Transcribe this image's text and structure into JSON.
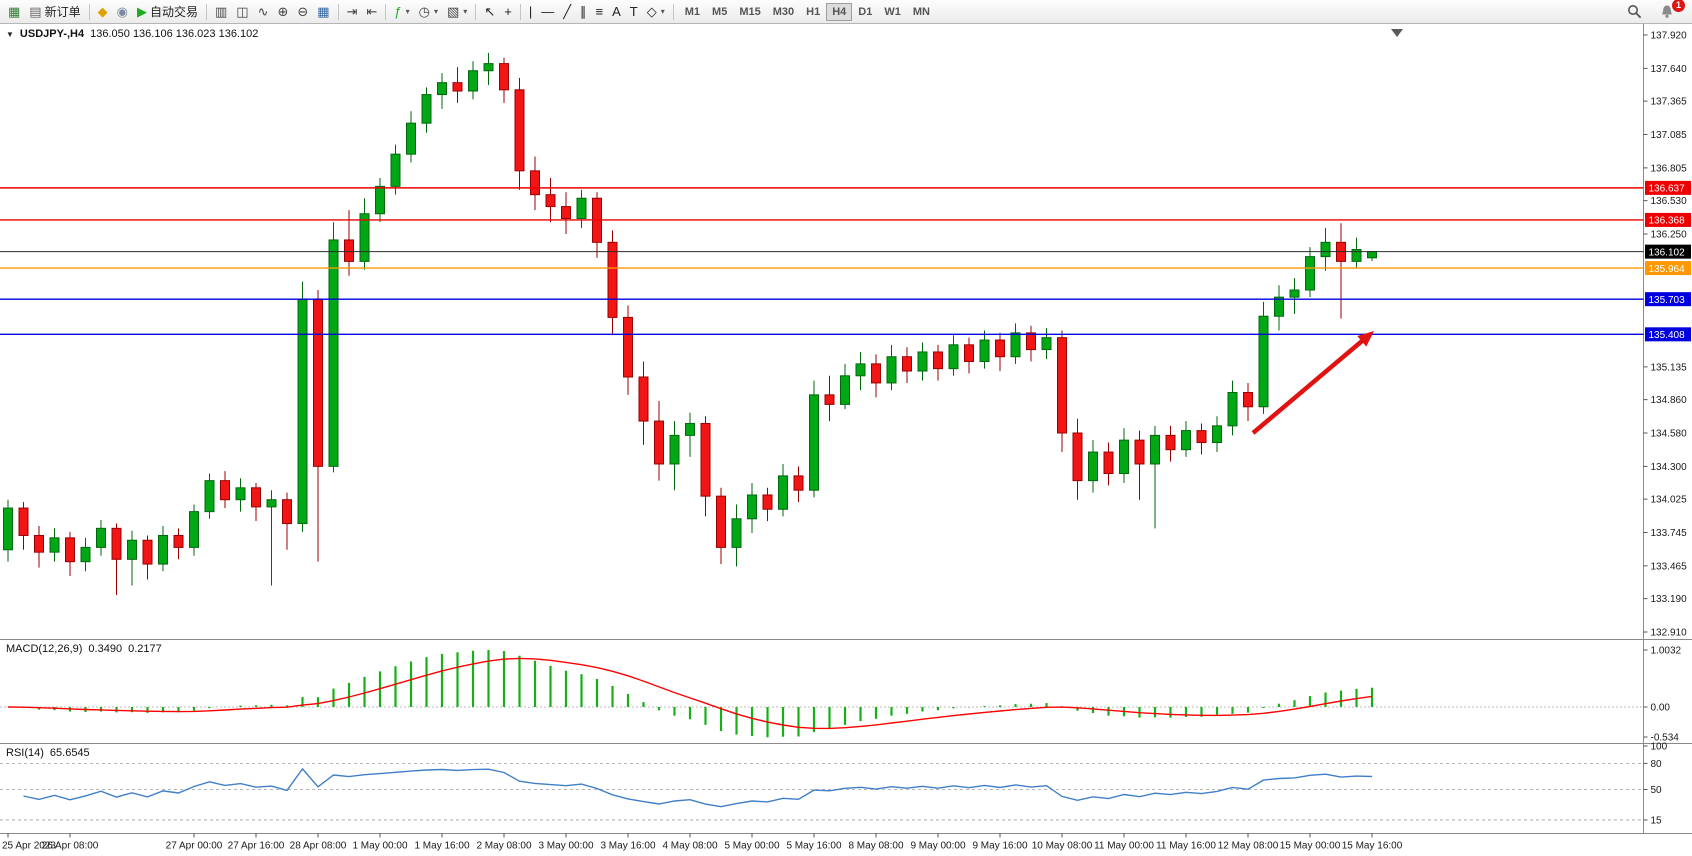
{
  "toolbar": {
    "buttons": [
      {
        "name": "new-chart",
        "glyph": "▦",
        "color": "#2e7d32"
      },
      {
        "name": "new-order",
        "glyph": "▤",
        "color": "#666",
        "label": "新订单"
      },
      {
        "name": "sep"
      },
      {
        "name": "metaeditor",
        "glyph": "◆",
        "color": "#dda400"
      },
      {
        "name": "community",
        "glyph": "◉",
        "color": "#7a8aa0"
      },
      {
        "name": "auto-trading",
        "glyph": "▶",
        "color": "#1faa1f",
        "label": "自动交易"
      },
      {
        "name": "sep"
      },
      {
        "name": "chart-bars",
        "glyph": "▥",
        "color": "#444"
      },
      {
        "name": "chart-candles",
        "glyph": "◫",
        "color": "#444"
      },
      {
        "name": "chart-line",
        "glyph": "∿",
        "color": "#444"
      },
      {
        "name": "zoom-in",
        "glyph": "⊕",
        "color": "#444"
      },
      {
        "name": "zoom-out",
        "glyph": "⊖",
        "color": "#444"
      },
      {
        "name": "tile-windows",
        "glyph": "▦",
        "color": "#3565a0"
      },
      {
        "name": "sep"
      },
      {
        "name": "auto-scroll",
        "glyph": "⇥",
        "color": "#444"
      },
      {
        "name": "chart-shift",
        "glyph": "⇤",
        "color": "#444"
      },
      {
        "name": "sep"
      },
      {
        "name": "indicators",
        "glyph": "ƒ",
        "color": "#1faa1f",
        "dropdown": true
      },
      {
        "name": "periods",
        "glyph": "◷",
        "color": "#444",
        "dropdown": true
      },
      {
        "name": "templates",
        "glyph": "▧",
        "color": "#444",
        "dropdown": true
      },
      {
        "name": "sep"
      },
      {
        "name": "cursor",
        "glyph": "↖",
        "color": "#222"
      },
      {
        "name": "crosshair",
        "glyph": "+",
        "color": "#222"
      },
      {
        "name": "sep"
      },
      {
        "name": "vertical-line",
        "glyph": "|",
        "color": "#222"
      },
      {
        "name": "horizontal-line",
        "glyph": "—",
        "color": "#222"
      },
      {
        "name": "trendline",
        "glyph": "╱",
        "color": "#222"
      },
      {
        "name": "equidistant-channel",
        "glyph": "∥",
        "color": "#222"
      },
      {
        "name": "fibonacci",
        "glyph": "≡",
        "color": "#222"
      },
      {
        "name": "text",
        "glyph": "A",
        "color": "#222"
      },
      {
        "name": "text-label",
        "glyph": "T",
        "color": "#222"
      },
      {
        "name": "shapes",
        "glyph": "◇",
        "color": "#222",
        "dropdown": true
      },
      {
        "name": "sep"
      }
    ],
    "timeframes": [
      "M1",
      "M5",
      "M15",
      "M30",
      "H1",
      "H4",
      "D1",
      "W1",
      "MN"
    ],
    "active_timeframe": "H4",
    "notification_badge": "1"
  },
  "chart_data": {
    "type": "candlestick",
    "symbol": "USDJPY-",
    "period": "H4",
    "title_text": "USDJPY-,H4",
    "ohlc_text": "136.050 136.106 136.023 136.102",
    "current": {
      "open": "136.050",
      "high": "136.106",
      "low": "136.023",
      "close": "136.102"
    },
    "y_ticks": [
      "137.920",
      "137.640",
      "137.365",
      "137.085",
      "136.805",
      "136.530",
      "136.250",
      "135.135",
      "134.860",
      "134.580",
      "134.300",
      "134.025",
      "133.745",
      "133.465",
      "133.190",
      "132.910"
    ],
    "x_labels": [
      [
        0,
        "25 Apr 2023"
      ],
      [
        4,
        "26 Apr 08:00"
      ],
      [
        12,
        "27 Apr 00:00"
      ],
      [
        16,
        "27 Apr 16:00"
      ],
      [
        20,
        "28 Apr 08:00"
      ],
      [
        24,
        "1 May 00:00"
      ],
      [
        28,
        "1 May 16:00"
      ],
      [
        32,
        "2 May 08:00"
      ],
      [
        36,
        "3 May 00:00"
      ],
      [
        40,
        "3 May 16:00"
      ],
      [
        44,
        "4 May 08:00"
      ],
      [
        48,
        "5 May 00:00"
      ],
      [
        52,
        "5 May 16:00"
      ],
      [
        56,
        "8 May 08:00"
      ],
      [
        60,
        "9 May 00:00"
      ],
      [
        64,
        "9 May 16:00"
      ],
      [
        68,
        "10 May 08:00"
      ],
      [
        72,
        "11 May 00:00"
      ],
      [
        76,
        "11 May 16:00"
      ],
      [
        80,
        "12 May 08:00"
      ],
      [
        84,
        "15 May 00:00"
      ],
      [
        88,
        "15 May 16:00"
      ]
    ],
    "candles": [
      [
        133.6,
        134.02,
        133.5,
        133.95
      ],
      [
        133.95,
        134.0,
        133.6,
        133.72
      ],
      [
        133.72,
        133.8,
        133.45,
        133.58
      ],
      [
        133.58,
        133.78,
        133.5,
        133.7
      ],
      [
        133.7,
        133.75,
        133.38,
        133.5
      ],
      [
        133.5,
        133.7,
        133.42,
        133.62
      ],
      [
        133.62,
        133.85,
        133.55,
        133.78
      ],
      [
        133.78,
        133.82,
        133.22,
        133.52
      ],
      [
        133.52,
        133.76,
        133.3,
        133.68
      ],
      [
        133.68,
        133.72,
        133.35,
        133.48
      ],
      [
        133.48,
        133.8,
        133.42,
        133.72
      ],
      [
        133.72,
        133.78,
        133.52,
        133.62
      ],
      [
        133.62,
        133.98,
        133.55,
        133.92
      ],
      [
        133.92,
        134.24,
        133.86,
        134.18
      ],
      [
        134.18,
        134.26,
        133.95,
        134.02
      ],
      [
        134.02,
        134.2,
        133.92,
        134.12
      ],
      [
        134.12,
        134.16,
        133.84,
        133.96
      ],
      [
        133.96,
        134.1,
        133.3,
        134.02
      ],
      [
        134.02,
        134.08,
        133.6,
        133.82
      ],
      [
        133.82,
        135.85,
        133.75,
        135.7
      ],
      [
        135.7,
        135.78,
        133.5,
        134.3
      ],
      [
        134.3,
        136.35,
        134.25,
        136.2
      ],
      [
        136.2,
        136.45,
        135.9,
        136.02
      ],
      [
        136.02,
        136.55,
        135.95,
        136.42
      ],
      [
        136.42,
        136.72,
        136.35,
        136.65
      ],
      [
        136.65,
        137.0,
        136.58,
        136.92
      ],
      [
        136.92,
        137.28,
        136.85,
        137.18
      ],
      [
        137.18,
        137.48,
        137.1,
        137.42
      ],
      [
        137.42,
        137.6,
        137.3,
        137.52
      ],
      [
        137.52,
        137.65,
        137.35,
        137.45
      ],
      [
        137.45,
        137.7,
        137.38,
        137.62
      ],
      [
        137.62,
        137.77,
        137.5,
        137.68
      ],
      [
        137.68,
        137.73,
        137.35,
        137.46
      ],
      [
        137.46,
        137.56,
        136.62,
        136.78
      ],
      [
        136.78,
        136.9,
        136.45,
        136.58
      ],
      [
        136.58,
        136.72,
        136.35,
        136.48
      ],
      [
        136.48,
        136.6,
        136.25,
        136.38
      ],
      [
        136.38,
        136.62,
        136.3,
        136.55
      ],
      [
        136.55,
        136.6,
        136.05,
        136.18
      ],
      [
        136.18,
        136.28,
        135.4,
        135.55
      ],
      [
        135.55,
        135.65,
        134.9,
        135.05
      ],
      [
        135.05,
        135.18,
        134.48,
        134.68
      ],
      [
        134.68,
        134.85,
        134.18,
        134.32
      ],
      [
        134.32,
        134.68,
        134.1,
        134.56
      ],
      [
        134.56,
        134.75,
        134.38,
        134.66
      ],
      [
        134.66,
        134.72,
        133.88,
        134.05
      ],
      [
        134.05,
        134.12,
        133.48,
        133.62
      ],
      [
        133.62,
        133.98,
        133.46,
        133.86
      ],
      [
        133.86,
        134.16,
        133.74,
        134.06
      ],
      [
        134.06,
        134.12,
        133.84,
        133.94
      ],
      [
        133.94,
        134.32,
        133.88,
        134.22
      ],
      [
        134.22,
        134.3,
        134.0,
        134.1
      ],
      [
        134.1,
        135.02,
        134.04,
        134.9
      ],
      [
        134.9,
        135.06,
        134.68,
        134.82
      ],
      [
        134.82,
        135.16,
        134.78,
        135.06
      ],
      [
        135.06,
        135.26,
        134.94,
        135.16
      ],
      [
        135.16,
        135.24,
        134.88,
        135.0
      ],
      [
        135.0,
        135.32,
        134.94,
        135.22
      ],
      [
        135.22,
        135.3,
        135.0,
        135.1
      ],
      [
        135.1,
        135.34,
        135.02,
        135.26
      ],
      [
        135.26,
        135.32,
        135.02,
        135.12
      ],
      [
        135.12,
        135.4,
        135.06,
        135.32
      ],
      [
        135.32,
        135.38,
        135.08,
        135.18
      ],
      [
        135.18,
        135.44,
        135.12,
        135.36
      ],
      [
        135.36,
        135.42,
        135.1,
        135.22
      ],
      [
        135.22,
        135.5,
        135.16,
        135.42
      ],
      [
        135.42,
        135.48,
        135.18,
        135.28
      ],
      [
        135.28,
        135.46,
        135.2,
        135.38
      ],
      [
        135.38,
        135.44,
        134.42,
        134.58
      ],
      [
        134.58,
        134.7,
        134.02,
        134.18
      ],
      [
        134.18,
        134.52,
        134.08,
        134.42
      ],
      [
        134.42,
        134.5,
        134.14,
        134.24
      ],
      [
        134.24,
        134.62,
        134.16,
        134.52
      ],
      [
        134.52,
        134.6,
        134.02,
        134.32
      ],
      [
        134.32,
        134.64,
        133.78,
        134.56
      ],
      [
        134.56,
        134.64,
        134.34,
        134.44
      ],
      [
        134.44,
        134.68,
        134.38,
        134.6
      ],
      [
        134.6,
        134.66,
        134.4,
        134.5
      ],
      [
        134.5,
        134.72,
        134.42,
        134.64
      ],
      [
        134.64,
        135.02,
        134.56,
        134.92
      ],
      [
        134.92,
        135.0,
        134.68,
        134.8
      ],
      [
        134.8,
        135.68,
        134.74,
        135.56
      ],
      [
        135.56,
        135.82,
        135.44,
        135.72
      ],
      [
        135.72,
        135.88,
        135.58,
        135.78
      ],
      [
        135.78,
        136.14,
        135.72,
        136.06
      ],
      [
        136.06,
        136.3,
        135.94,
        136.18
      ],
      [
        136.18,
        136.34,
        135.54,
        136.02
      ],
      [
        136.02,
        136.22,
        135.96,
        136.12
      ],
      [
        136.05,
        136.106,
        136.023,
        136.102
      ]
    ],
    "price_lines": [
      {
        "price": "136.637",
        "color": "#ee0000"
      },
      {
        "price": "136.368",
        "color": "#ee0000"
      },
      {
        "price": "135.964",
        "color": "#ff9800"
      },
      {
        "price": "135.703",
        "color": "#0000e0"
      },
      {
        "price": "135.408",
        "color": "#0000e0"
      }
    ],
    "bid": {
      "price": "136.102",
      "color": "#000000"
    },
    "colors": {
      "bull": "#00a816",
      "bull_edge": "#00670d",
      "bear": "#f21515",
      "bear_edge": "#9a0000",
      "macd_hist": "#16b016",
      "macd_signal": "#ff0000",
      "rsi": "#3f7fc9"
    },
    "macd": {
      "label": "MACD(12,26,9)",
      "value_main": "0.3490",
      "value_signal": "0.2177",
      "scale_max": "1.0032",
      "scale_zero": "0.00",
      "scale_min": "-0.534",
      "params": [
        12,
        26,
        9
      ]
    },
    "rsi": {
      "label": "RSI(14)",
      "value": "65.6545",
      "period": 14,
      "scale": [
        "100",
        "80",
        "50",
        "15"
      ]
    },
    "arrow": {
      "color": "#e01212"
    }
  }
}
